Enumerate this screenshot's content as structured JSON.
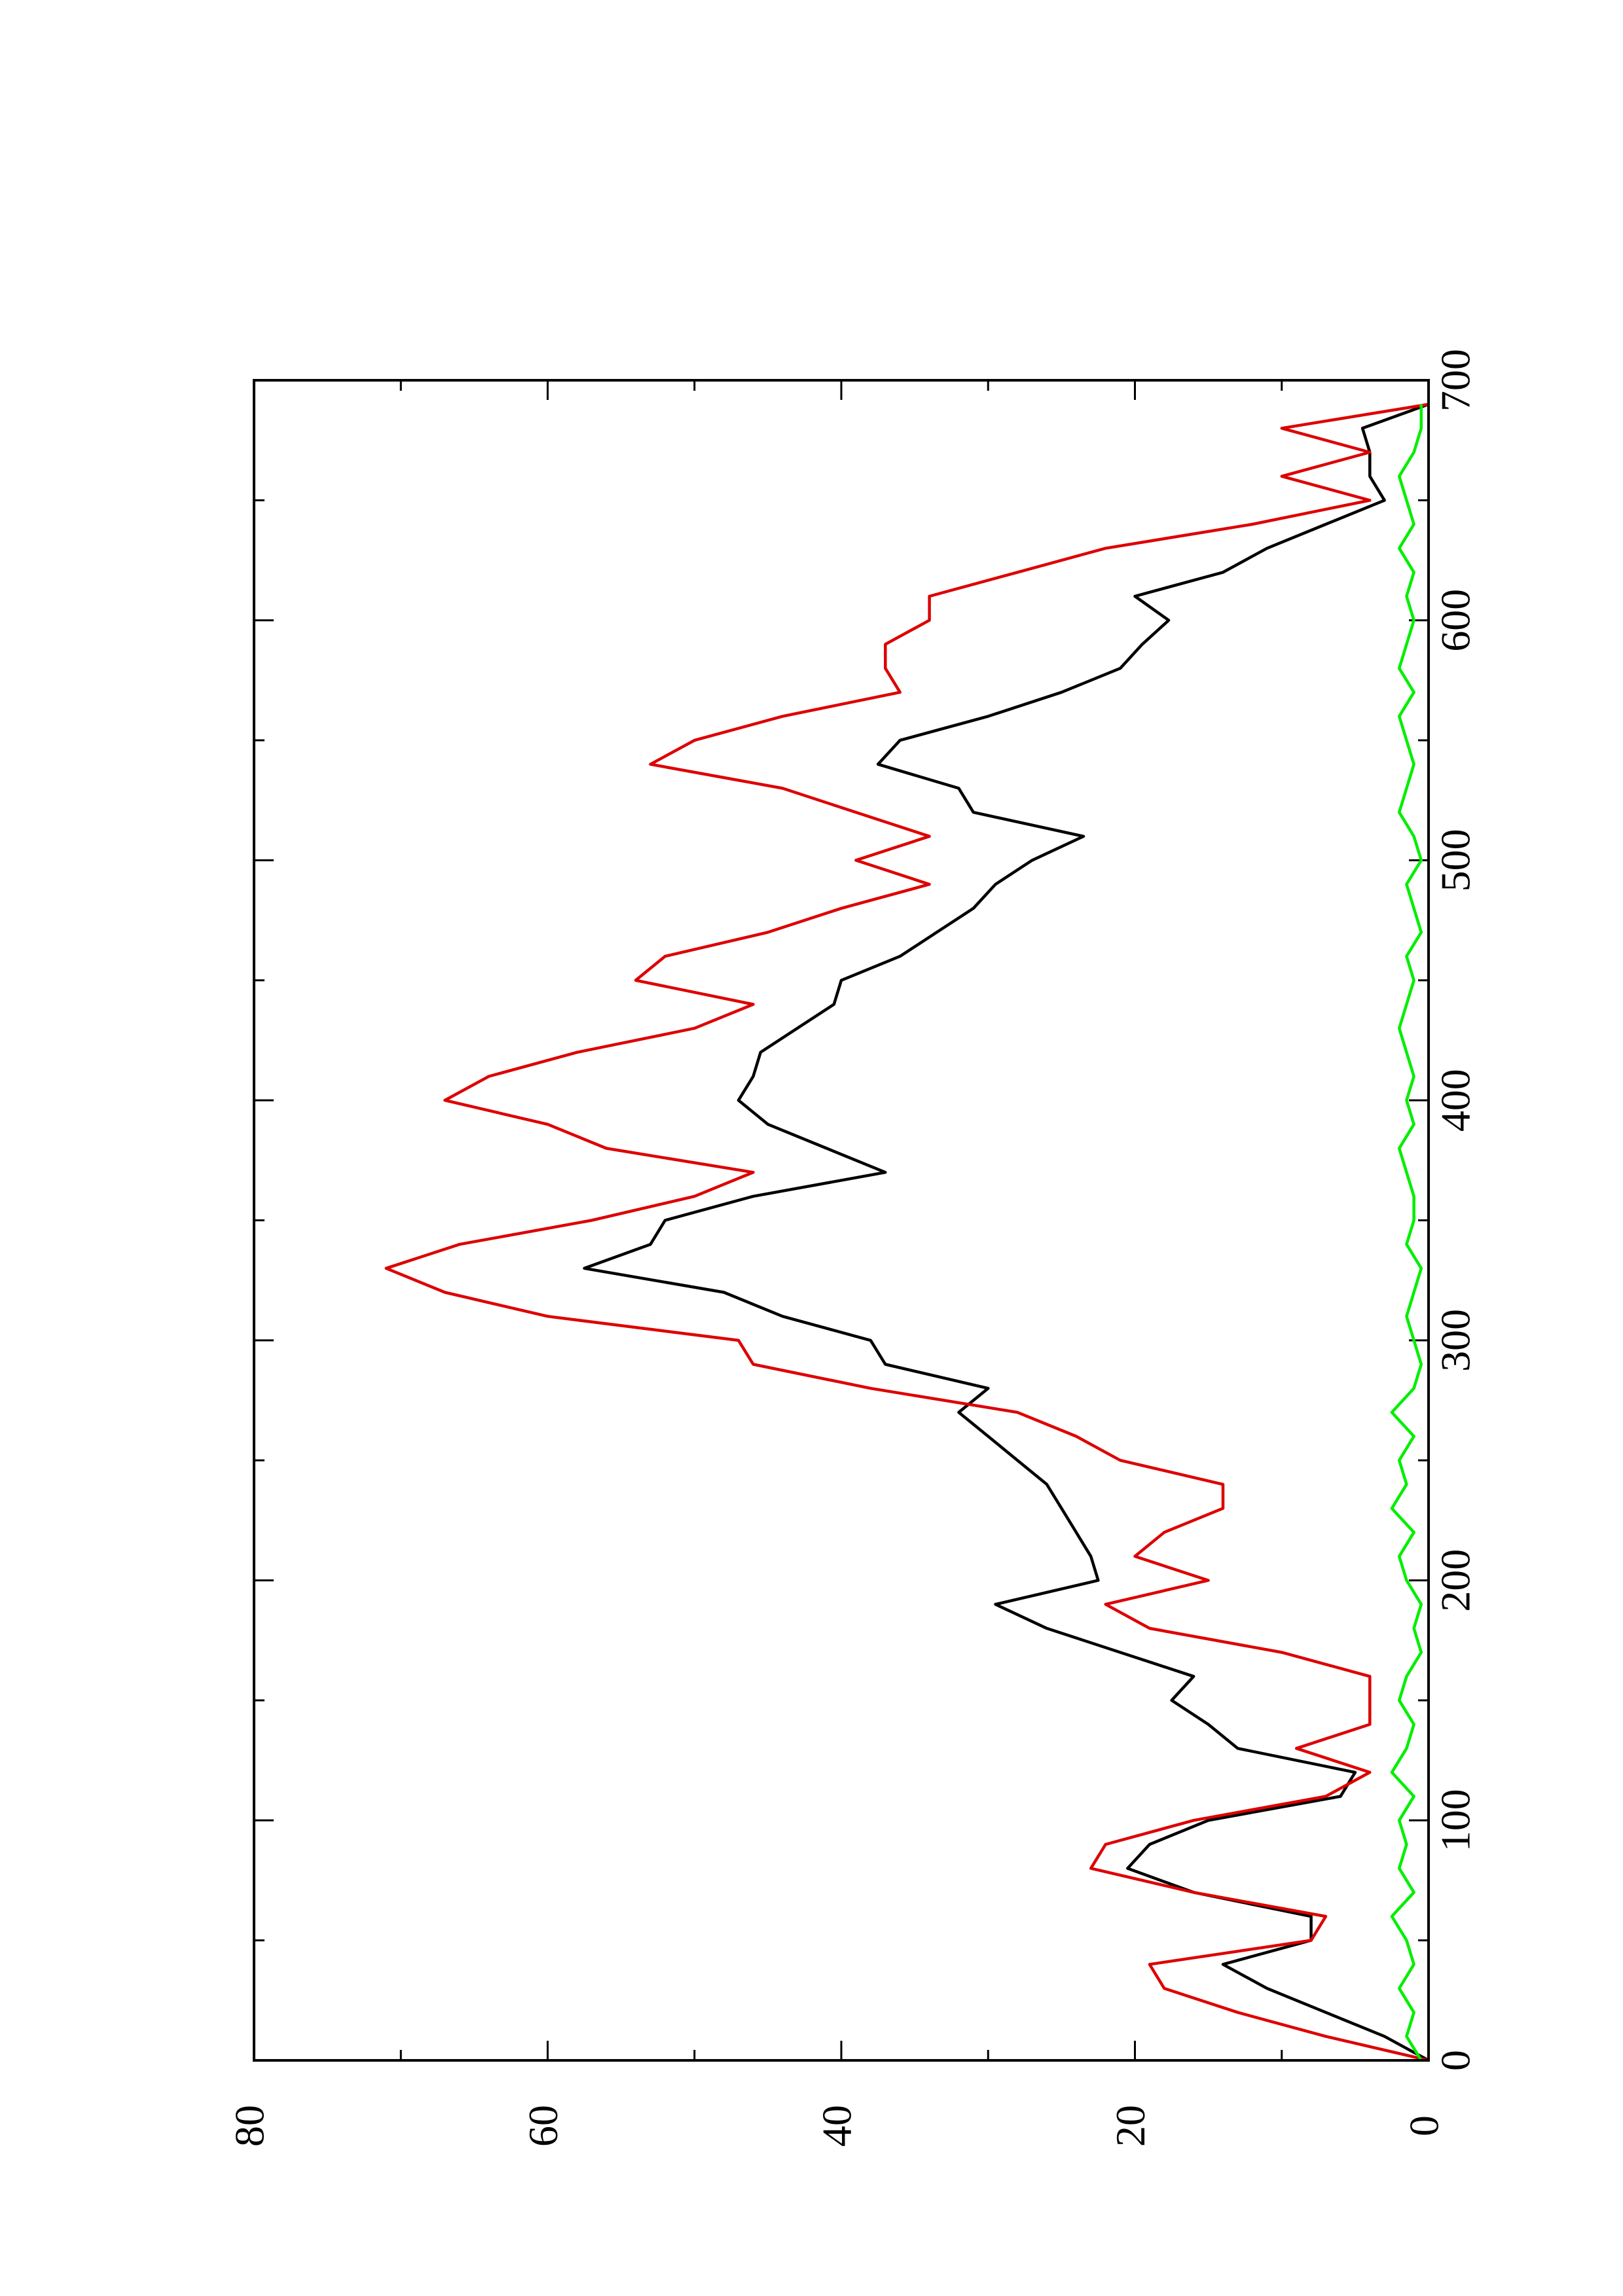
{
  "chart_data": {
    "type": "line",
    "x": [
      0,
      10,
      20,
      30,
      40,
      50,
      60,
      70,
      80,
      90,
      100,
      110,
      120,
      130,
      140,
      150,
      160,
      170,
      180,
      190,
      200,
      210,
      220,
      230,
      240,
      250,
      260,
      270,
      280,
      290,
      300,
      310,
      320,
      330,
      340,
      350,
      360,
      370,
      380,
      390,
      400,
      410,
      420,
      430,
      440,
      450,
      460,
      470,
      480,
      490,
      500,
      510,
      520,
      530,
      540,
      550,
      560,
      570,
      580,
      590,
      600,
      610,
      620,
      630,
      640,
      650,
      660,
      670,
      680,
      690
    ],
    "series": [
      {
        "color": "#000000",
        "values": [
          0,
          3,
          7,
          11,
          14,
          8,
          8,
          16,
          20.5,
          19,
          15,
          6,
          5,
          13,
          15,
          17.5,
          16,
          21,
          26,
          29.5,
          22.5,
          23,
          24,
          25,
          26,
          28,
          30,
          32,
          30,
          37,
          38,
          44,
          48,
          57.5,
          53,
          52,
          46,
          37,
          41,
          45,
          47,
          46,
          45.5,
          43,
          40.5,
          40,
          36,
          33.5,
          31,
          29.5,
          27,
          23.5,
          31,
          32,
          37.5,
          36,
          30,
          25,
          21,
          19.5,
          17.7,
          20,
          14,
          11,
          7,
          3,
          4,
          4,
          4.5,
          0
        ]
      },
      {
        "color": "#dd0000",
        "values": [
          0,
          7,
          13,
          18,
          19,
          8,
          7,
          16,
          23,
          22,
          16,
          7,
          4,
          9,
          4,
          4,
          4,
          10,
          19,
          22,
          15,
          20,
          18,
          14,
          14,
          21,
          24,
          28,
          38,
          46,
          47,
          60,
          67,
          71,
          66,
          57,
          50,
          46,
          56,
          60,
          67,
          64,
          58,
          50,
          46,
          54,
          52,
          45,
          40,
          34,
          39,
          34,
          39,
          44,
          53,
          50,
          44,
          36,
          37,
          37,
          34,
          34,
          28,
          22,
          12,
          4,
          10,
          4,
          10,
          0
        ]
      },
      {
        "color": "#00ee00",
        "values": [
          0.5,
          1.5,
          1,
          2,
          1,
          1.5,
          2.5,
          1,
          2,
          1.5,
          2,
          1,
          2.5,
          1.5,
          1,
          2,
          1.5,
          0.5,
          1,
          0.5,
          1.5,
          2,
          1,
          2.5,
          1.5,
          2,
          1,
          2.5,
          1,
          0.5,
          1,
          1.5,
          1,
          0.5,
          1.5,
          1,
          1,
          1.5,
          2,
          1,
          1.5,
          1,
          1.5,
          2,
          1.5,
          1,
          1.5,
          0.5,
          1,
          1.5,
          0.5,
          1,
          2,
          1.5,
          1,
          1.5,
          2,
          1,
          2,
          1.5,
          1,
          1.5,
          1,
          2,
          1,
          1.5,
          2,
          1,
          0.5,
          0.5
        ]
      }
    ],
    "xlim": [
      0,
      700
    ],
    "xticks": [
      0,
      100,
      200,
      300,
      400,
      500,
      600,
      700
    ],
    "xminor_ticks": [
      50,
      150,
      250,
      350,
      450,
      550,
      650
    ],
    "ylim": [
      0,
      80
    ],
    "yticks": [
      0,
      20,
      40,
      60,
      80
    ],
    "yminor_ticks": [
      10,
      30,
      50,
      70
    ],
    "rotated": true
  }
}
